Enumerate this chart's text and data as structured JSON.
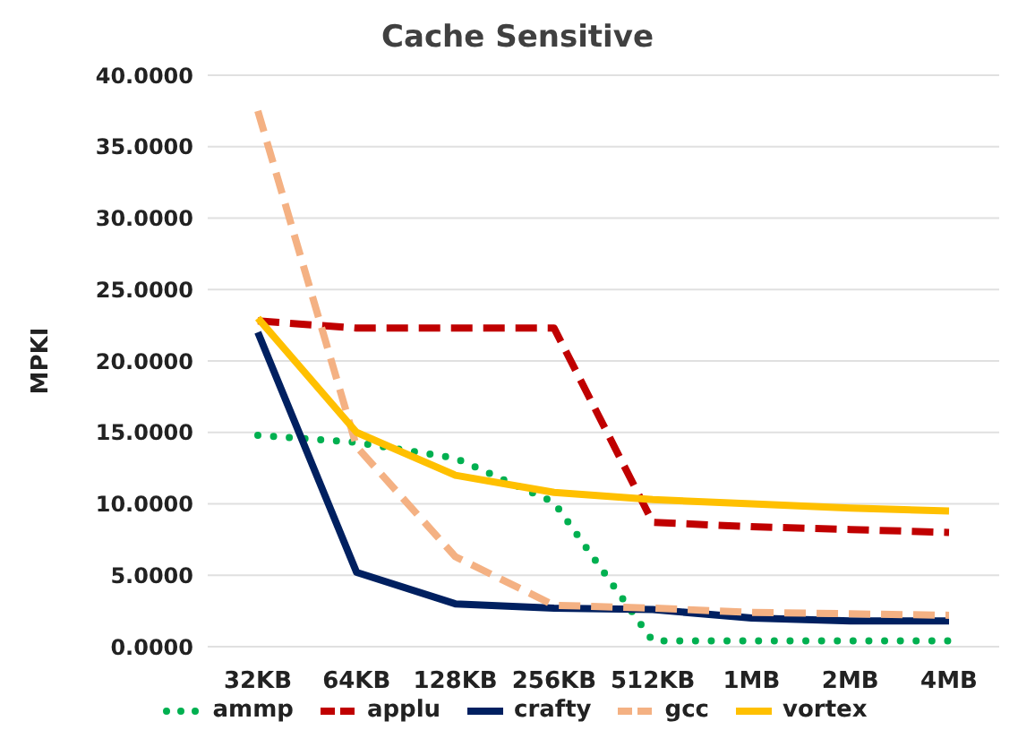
{
  "chart_data": {
    "type": "line",
    "title": "Cache Sensitive",
    "ylabel": "MPKI",
    "categories": [
      "32KB",
      "64KB",
      "128KB",
      "256KB",
      "512KB",
      "1MB",
      "2MB",
      "4MB"
    ],
    "series": [
      {
        "name": "ammp",
        "color": "#00b050",
        "line_style": "dotted",
        "values": [
          14.8,
          14.3,
          13.2,
          10.1,
          0.4,
          0.4,
          0.4,
          0.4
        ]
      },
      {
        "name": "applu",
        "color": "#c00000",
        "line_style": "dashed",
        "values": [
          22.8,
          22.3,
          22.3,
          22.3,
          8.7,
          8.4,
          8.2,
          8.0
        ]
      },
      {
        "name": "crafty",
        "color": "#002060",
        "line_style": "solid",
        "values": [
          22.0,
          5.2,
          3.0,
          2.7,
          2.6,
          2.0,
          1.8,
          1.8
        ]
      },
      {
        "name": "gcc",
        "color": "#f4b183",
        "line_style": "dashed",
        "values": [
          37.5,
          14.0,
          6.3,
          2.9,
          2.7,
          2.4,
          2.3,
          2.2
        ]
      },
      {
        "name": "vortex",
        "color": "#ffc000",
        "line_style": "solid",
        "values": [
          23.0,
          15.0,
          12.0,
          10.8,
          10.3,
          10.0,
          9.7,
          9.5
        ]
      }
    ],
    "ylim": [
      0,
      40
    ],
    "yticks": [
      {
        "value": 0,
        "label": "0.0000"
      },
      {
        "value": 5,
        "label": "5.0000"
      },
      {
        "value": 10,
        "label": "10.0000"
      },
      {
        "value": 15,
        "label": "15.0000"
      },
      {
        "value": 20,
        "label": "20.0000"
      },
      {
        "value": 25,
        "label": "25.0000"
      },
      {
        "value": 30,
        "label": "30.0000"
      },
      {
        "value": 35,
        "label": "35.0000"
      },
      {
        "value": 40,
        "label": "40.0000"
      }
    ],
    "grid": "y",
    "legend": "bottom",
    "marker": "none"
  }
}
